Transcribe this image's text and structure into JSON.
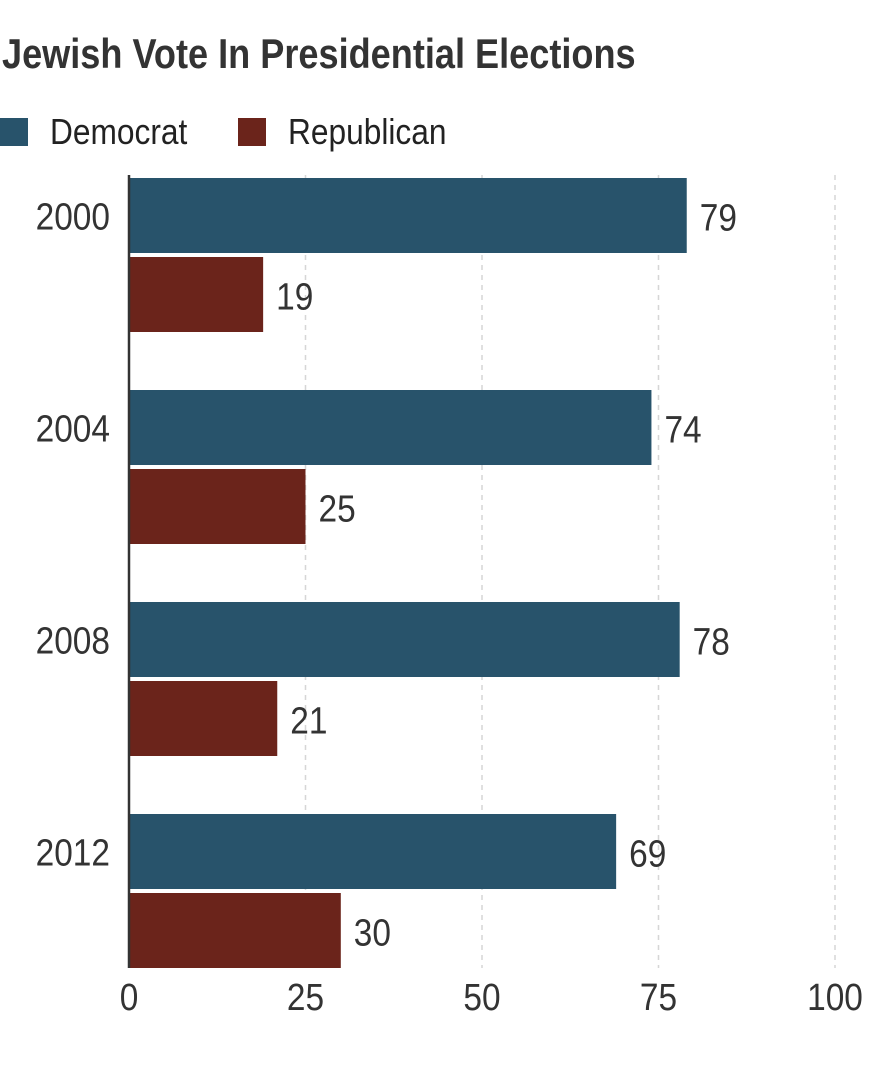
{
  "chart_data": {
    "type": "bar",
    "orientation": "horizontal",
    "title": "Jewish Vote In Presidential Elections",
    "categories": [
      "2000",
      "2004",
      "2008",
      "2012"
    ],
    "series": [
      {
        "name": "Democrat",
        "values": [
          79,
          74,
          78,
          69
        ],
        "color": "#28536b"
      },
      {
        "name": "Republican",
        "values": [
          19,
          25,
          21,
          30
        ],
        "color": "#6b241b"
      }
    ],
    "xlim": [
      0,
      100
    ],
    "xticks": [
      "0",
      "25",
      "50",
      "75",
      "100"
    ],
    "xlabel": "",
    "ylabel": "",
    "grid": true,
    "legend_position": "top-left"
  }
}
